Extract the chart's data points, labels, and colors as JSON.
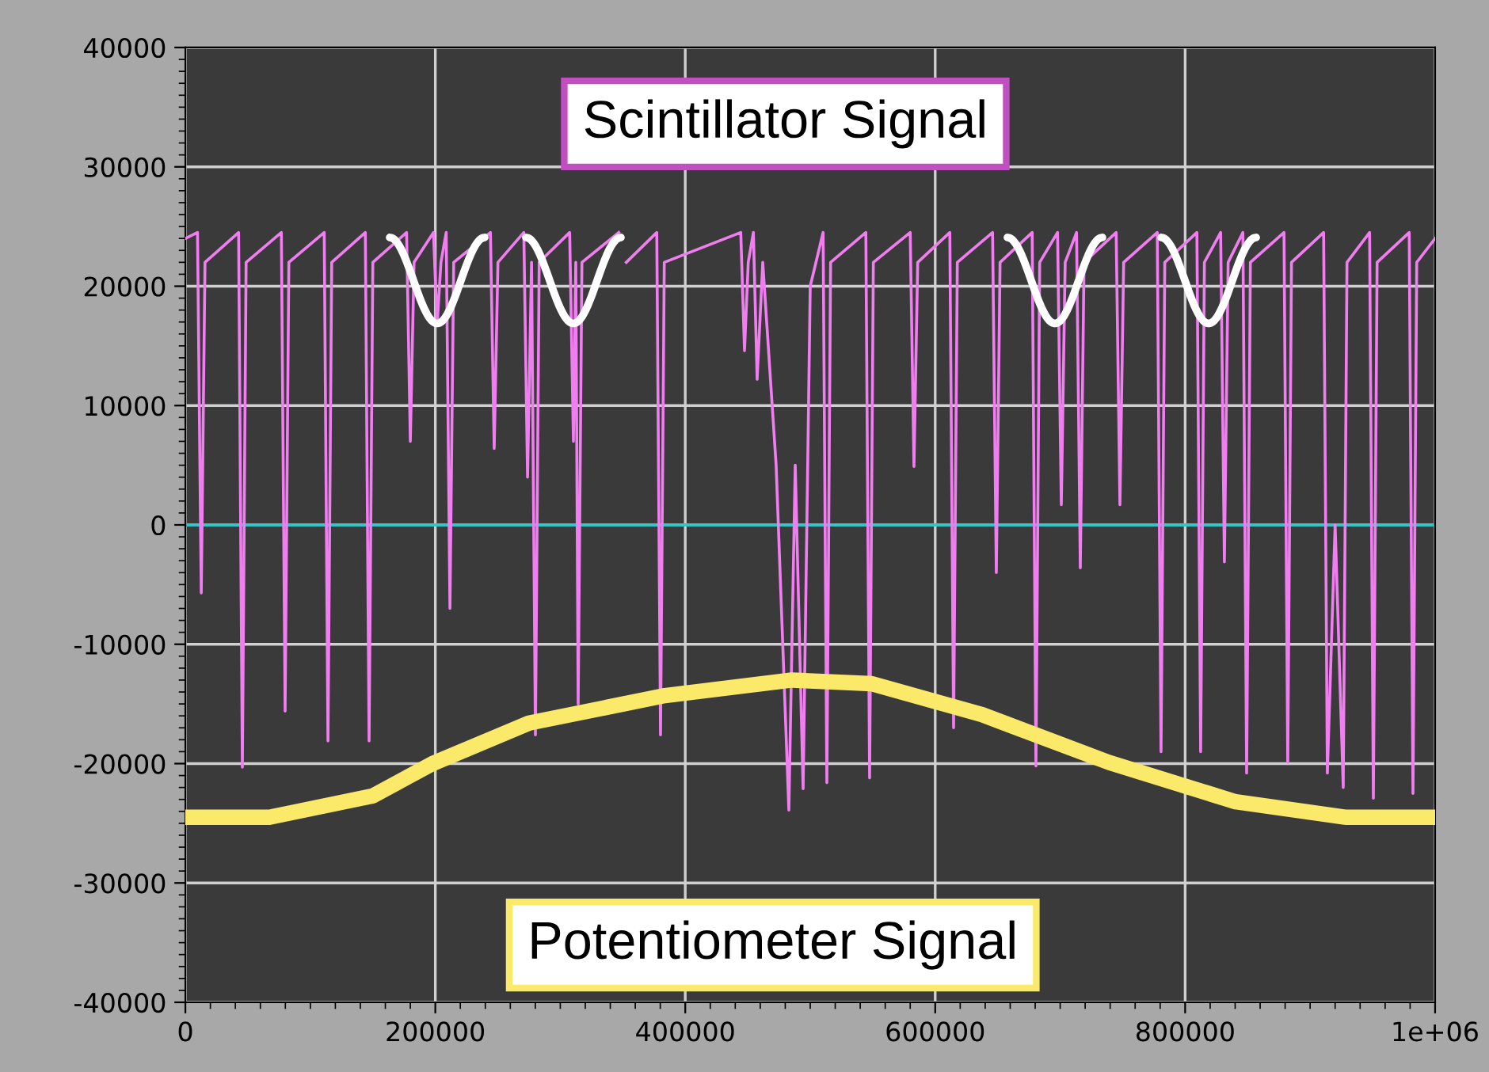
{
  "chart_data": {
    "type": "line",
    "grid": true,
    "marker": "none",
    "line_style": "solid",
    "xlim": [
      0,
      1000000
    ],
    "ylim": [
      -40000,
      40000
    ],
    "xticks": [
      0,
      200000,
      400000,
      600000,
      800000,
      {
        "value": 1000000,
        "label": "1e+06"
      }
    ],
    "yticks": [
      -40000,
      -30000,
      -20000,
      -10000,
      0,
      10000,
      20000,
      30000,
      40000
    ],
    "ref_lines": [
      {
        "axis": "y",
        "value": 0,
        "color": "#33c6c6"
      }
    ],
    "series": [
      {
        "name": "Scintillator Signal",
        "color": "#f07ef0",
        "x": [
          0,
          9700,
          12700,
          15700,
          42600,
          45600,
          48600,
          76800,
          79800,
          82800,
          111100,
          114100,
          117100,
          144000,
          147000,
          150000,
          177000,
          180000,
          183000,
          198500,
          201500,
          204500,
          208700,
          211700,
          214700,
          244100,
          247100,
          250100,
          270800,
          273800,
          277000,
          280100,
          283100,
          307500,
          310500,
          312400,
          314300,
          317300,
          346800,
          349800,
          352800,
          377200,
          380200,
          383200,
          444400,
          447400,
          450400,
          454500,
          457500,
          462000,
          472700,
          482900,
          488000,
          494300,
          500000,
          510300,
          513300,
          516300,
          544500,
          547500,
          550500,
          580000,
          583000,
          586000,
          611700,
          614700,
          617700,
          645900,
          648900,
          651900,
          677600,
          680600,
          683600,
          697900,
          700900,
          704000,
          713100,
          716100,
          719100,
          744800,
          747800,
          750800,
          777700,
          780700,
          783700,
          809400,
          812400,
          815400,
          828400,
          831400,
          834400,
          846200,
          849200,
          852200,
          879100,
          882100,
          885100,
          910800,
          913800,
          920000,
          926500,
          929500,
          947600,
          950600,
          953600,
          979300,
          982300,
          985300,
          1000000
        ],
        "values": [
          24000,
          24500,
          -5700,
          22000,
          24500,
          -20300,
          22000,
          24500,
          -15600,
          22000,
          24500,
          -18100,
          22000,
          24500,
          -18100,
          22000,
          24500,
          7000,
          22000,
          24500,
          16800,
          22000,
          24500,
          -7000,
          22000,
          24500,
          6400,
          22000,
          24500,
          4000,
          22000,
          -17600,
          22000,
          24500,
          7000,
          22000,
          -15000,
          22000,
          24500,
          null,
          22000,
          24500,
          -17600,
          22000,
          24500,
          14600,
          22000,
          24500,
          12200,
          22000,
          5000,
          -23900,
          5000,
          -22100,
          20000,
          24500,
          -21600,
          22000,
          24500,
          -21200,
          22000,
          24500,
          4900,
          22000,
          24500,
          -17000,
          22000,
          24500,
          -4000,
          22000,
          24500,
          -20200,
          22000,
          24500,
          1700,
          22000,
          24500,
          -3600,
          22000,
          24500,
          1700,
          22000,
          24500,
          -19000,
          22000,
          24500,
          -19000,
          22000,
          24500,
          -3100,
          22000,
          24500,
          -20800,
          22000,
          24500,
          -19900,
          22000,
          24500,
          -20800,
          0,
          -22000,
          22000,
          24500,
          -22900,
          22000,
          24500,
          -22500,
          22000,
          24000
        ]
      },
      {
        "name": "Potentiometer Signal",
        "color": "#fbe96a",
        "x": [
          0,
          67200,
          150000,
          197700,
          275000,
          383700,
          485400,
          548800,
          637500,
          739000,
          840400,
          929000,
          1000000
        ],
        "values": [
          -24500,
          -24500,
          -22700,
          -20000,
          -16600,
          -14300,
          -13000,
          -13300,
          -15900,
          -19900,
          -23200,
          -24500,
          -24500
        ]
      }
    ]
  }
}
